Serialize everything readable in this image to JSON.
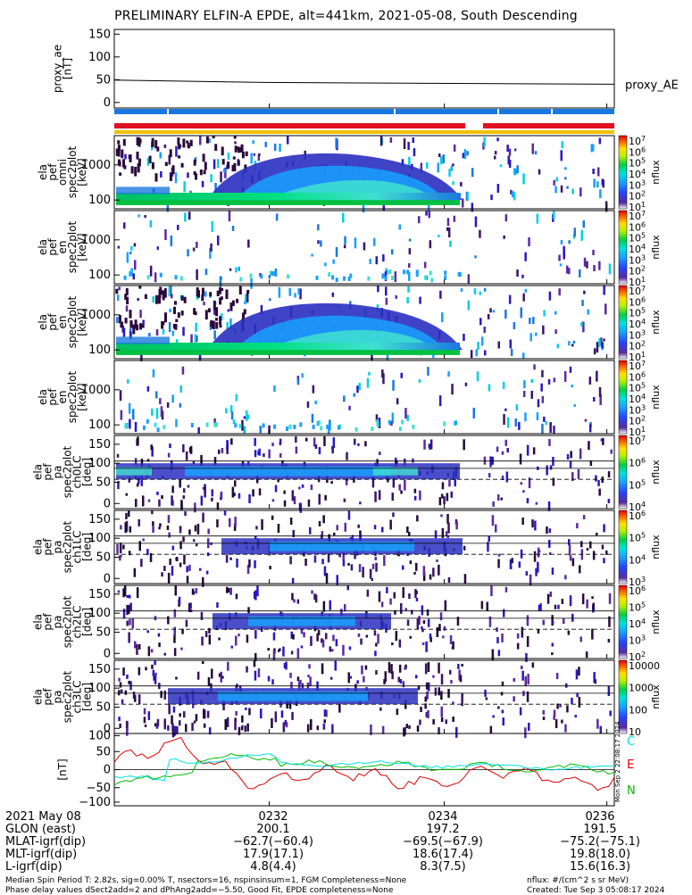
{
  "title": "PRELIMINARY ELFIN-A EPDE, alt=441km, 2021-05-08, South Descending",
  "chart_data": [
    {
      "type": "line",
      "ylabel": "proxy_ae\n[nT]",
      "ylim": [
        -10,
        160
      ],
      "yticks": [
        "150",
        "100",
        "50",
        "0"
      ],
      "series": [
        {
          "name": "proxy_AE",
          "x": [
            0,
            0.3,
            1
          ],
          "values": [
            49,
            44,
            40
          ]
        }
      ]
    },
    {
      "type": "heatmap",
      "ylabel": "ela\npef\nomni\nspec2plot\n[keV]",
      "yticks": [
        "1000",
        "100"
      ],
      "colorbar": {
        "label": "nflux",
        "ticks": [
          "10^7",
          "10^6",
          "10^5",
          "10^4",
          "10^3",
          "10^2",
          "10^1"
        ]
      }
    },
    {
      "type": "heatmap",
      "ylabel": "ela\npef\nen\nspec2plot\n[keV]",
      "yticks": [
        "1000",
        "100"
      ],
      "colorbar": {
        "label": "nflux",
        "ticks": [
          "10^7",
          "10^6",
          "10^5",
          "10^4",
          "10^3",
          "10^2",
          "10^1"
        ]
      }
    },
    {
      "type": "heatmap",
      "ylabel": "ela\npef\nen\nspec2plot\n[keV]",
      "yticks": [
        "1000",
        "100"
      ],
      "colorbar": {
        "label": "nflux",
        "ticks": [
          "10^7",
          "10^6",
          "10^5",
          "10^4",
          "10^3",
          "10^2",
          "10^1"
        ]
      }
    },
    {
      "type": "heatmap",
      "ylabel": "ela\npef\nen\nspec2plot\n[keV]",
      "yticks": [
        "1000",
        "100"
      ],
      "colorbar": {
        "label": "nflux",
        "ticks": [
          "10^7",
          "10^6",
          "10^5",
          "10^4",
          "10^3",
          "10^2",
          "10^1"
        ]
      }
    },
    {
      "type": "heatmap",
      "ylabel": "ela\npef\npa\nspec2plot\nch0LC\n[deg]",
      "yticks": [
        "150",
        "100",
        "50",
        "0"
      ],
      "colorbar": {
        "label": "nflux",
        "ticks": [
          "10^7",
          "10^6",
          "10^5",
          "10^4"
        ]
      }
    },
    {
      "type": "heatmap",
      "ylabel": "ela\npef\npa\nspec2plot\nch1LC\n[deg]",
      "yticks": [
        "150",
        "100",
        "50",
        "0"
      ],
      "colorbar": {
        "label": "nflux",
        "ticks": [
          "10^6",
          "10^5",
          "10^4",
          "10^3"
        ]
      }
    },
    {
      "type": "heatmap",
      "ylabel": "ela\npef\npa\nspec2plot\nch2LC\n[deg]",
      "yticks": [
        "150",
        "100",
        "50",
        "0"
      ],
      "colorbar": {
        "label": "nflux",
        "ticks": [
          "10^6",
          "10^5",
          "10^4",
          "10^3",
          "10^2"
        ]
      }
    },
    {
      "type": "heatmap",
      "ylabel": "ela\npef\npa\nspec2plot\nch3LC\n[deg]",
      "yticks": [
        "150",
        "100",
        "50",
        "0"
      ],
      "colorbar": {
        "label": "nflux",
        "ticks": [
          "10000",
          "1000",
          "100",
          "10"
        ]
      }
    },
    {
      "type": "line",
      "ylabel": "[nT]",
      "ylim": [
        -110,
        110
      ],
      "yticks": [
        "100",
        "50",
        "0",
        "−50",
        "−100"
      ],
      "series": [
        {
          "name": "C"
        },
        {
          "name": "E"
        },
        {
          "name": "N"
        }
      ],
      "colors": {
        "C": "#00e0e0",
        "E": "#dd0000",
        "N": "#00bb00"
      }
    }
  ],
  "footer": {
    "rows": [
      {
        "label": "2021 May 08",
        "values": [
          "0232",
          "0234",
          "0236"
        ]
      },
      {
        "label": "GLON (east)",
        "values": [
          "200.1",
          "197.2",
          "191.5"
        ]
      },
      {
        "label": "MLAT-igrf(dip)",
        "values": [
          "−62.7(−60.4)",
          "−69.5(−67.9)",
          "−75.2(−75.1)"
        ]
      },
      {
        "label": "MLT-igrf(dip)",
        "values": [
          "17.9(17.1)",
          "18.6(17.4)",
          "19.8(18.0)"
        ]
      },
      {
        "label": "L-igrf(dip)",
        "values": [
          "4.8(4.4)",
          "8.3(7.5)",
          "15.6(16.3)"
        ]
      }
    ],
    "note1": "Median Spin Period T: 2.82s, sig=0.00% T, nsectors=16, nspinsinsum=1, FGM Completeness=None",
    "note2": "Phase delay values dSect2add=2 and dPhAng2add=−5.50, Good Fit, EPDE completeness=None",
    "note3": "nflux: #/(cm^2 s sr MeV)",
    "note4": "Created: Tue Sep  3 05:08:17 2024",
    "vertical_stamp": "Mon Sep  2 22:08:17 2024"
  },
  "colors": {
    "bar_blue": "#1b78e0",
    "bar_red": "#e01020",
    "bar_yellow": "#f0c000"
  }
}
